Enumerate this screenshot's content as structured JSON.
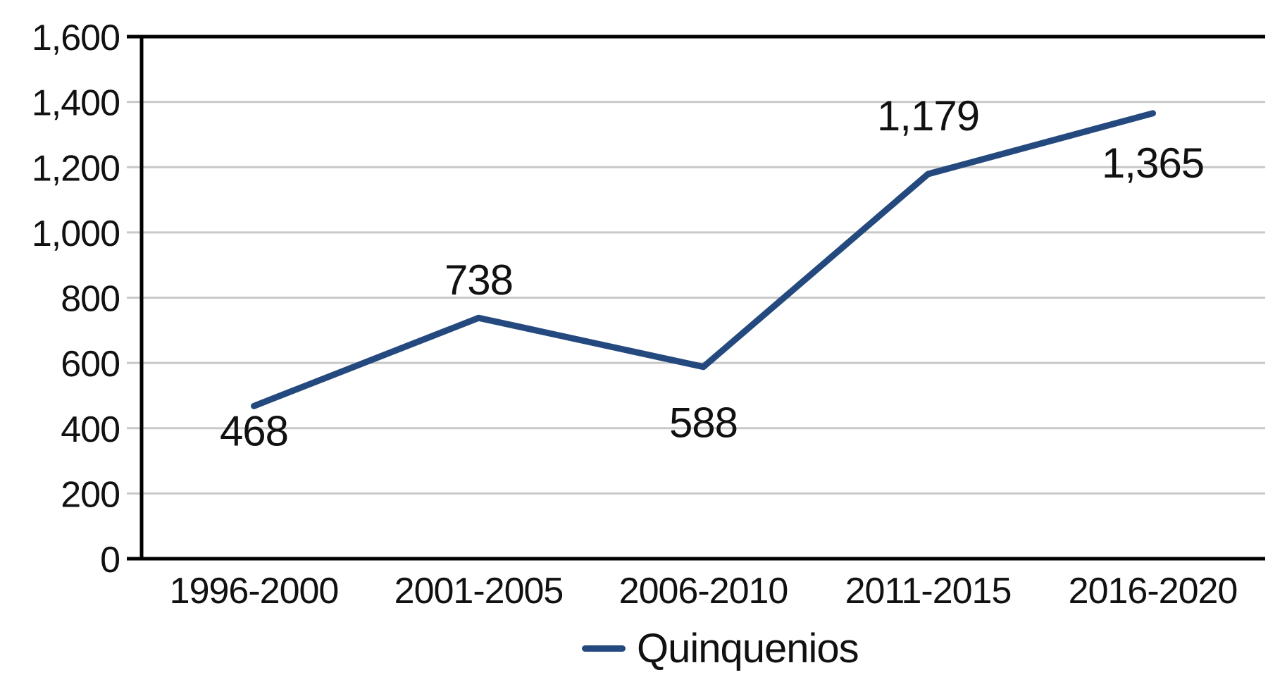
{
  "chart_data": {
    "type": "line",
    "title": "",
    "categories": [
      "1996-2000",
      "2001-2005",
      "2006-2010",
      "2011-2015",
      "2016-2020"
    ],
    "series": [
      {
        "name": "Quinquenios",
        "values": [
          468,
          738,
          588,
          1179,
          1365
        ]
      }
    ],
    "data_labels": [
      "468",
      "738",
      "588",
      "1,179",
      "1,365"
    ],
    "label_dy": [
      56,
      -33,
      100,
      -62,
      91
    ],
    "xlabel": "",
    "ylabel": "",
    "ylim": [
      0,
      1600
    ],
    "ytick_step": 200,
    "ytick_labels": [
      "0",
      "200",
      "400",
      "600",
      "800",
      "1,000",
      "1,200",
      "1,400",
      "1,600"
    ],
    "grid": true,
    "legend_position": "bottom-center",
    "colors": {
      "line": "#24497E",
      "gridline": "#C9C9C9",
      "axis": "#000000",
      "text": "#111111",
      "background": "#FFFFFF"
    }
  }
}
